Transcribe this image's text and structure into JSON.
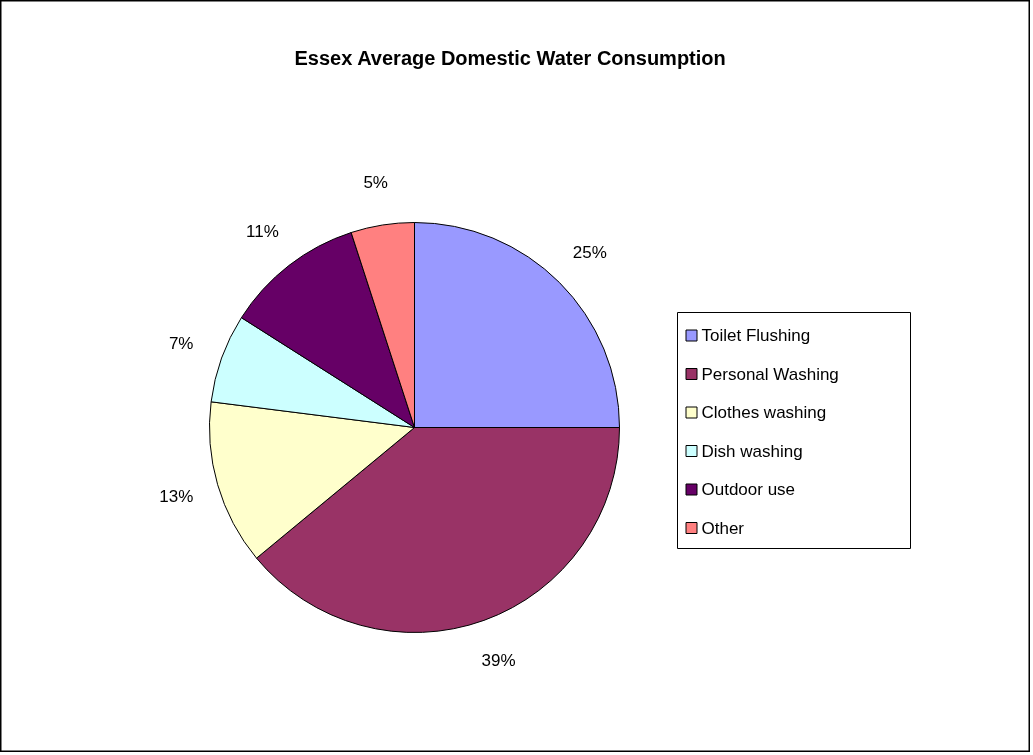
{
  "chart_data": {
    "type": "pie",
    "title": "Essex Average Domestic Water Consumption",
    "categories": [
      "Toilet Flushing",
      "Personal Washing",
      "Clothes washing",
      "Dish washing",
      "Outdoor use",
      "Other"
    ],
    "values": [
      25,
      39,
      13,
      7,
      11,
      5
    ],
    "value_labels": [
      "25%",
      "39%",
      "13%",
      "7%",
      "11%",
      "5%"
    ],
    "colors": [
      "#9999ff",
      "#993366",
      "#ffffcc",
      "#ccffff",
      "#660066",
      "#ff8080"
    ],
    "legend": "right"
  }
}
